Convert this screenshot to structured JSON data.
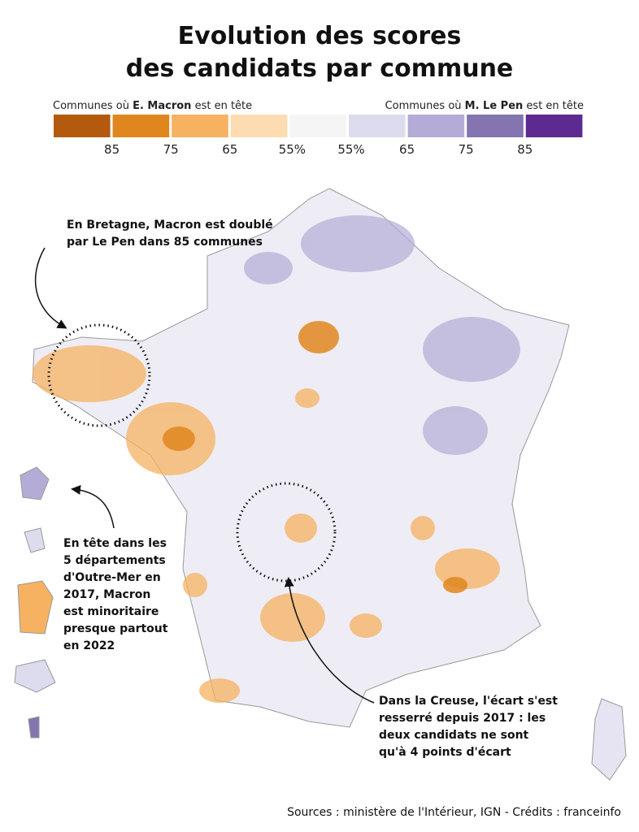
{
  "header": {
    "title_lines": [
      "Evolution des scores",
      "des candidats par commune"
    ]
  },
  "legend": {
    "left": [
      "Communes où ",
      "E. Macron",
      " est en tête"
    ],
    "right": [
      "Communes où ",
      "M. Le Pen",
      " est en tête"
    ],
    "colors": [
      "#b35a0f",
      "#e0861f",
      "#f6b261",
      "#fcdcb0",
      "#f5f5f5",
      "#dcdcee",
      "#b4acd6",
      "#8474b0",
      "#5c2a91"
    ],
    "ticks": [
      "85",
      "75",
      "65",
      "55%",
      "55%",
      "65",
      "75",
      "85"
    ]
  },
  "annotations": [
    {
      "lines": [
        "En Bretagne, Macron est doublé",
        "par Le Pen dans 85 communes"
      ]
    },
    {
      "lines": [
        "En tête dans les",
        "5 départements",
        "d'Outre-Mer en",
        "2017, Macron",
        "est minoritaire",
        "presque partout",
        "en 2022"
      ]
    },
    {
      "lines": [
        "Dans la Creuse, l'écart s'est",
        "resserré depuis 2017 : les",
        "deux candidats ne sont",
        "qu'à 4 points d'écart"
      ]
    }
  ],
  "source": "Sources : ministère de l'Intérieur, IGN - Crédits : franceinfo"
}
